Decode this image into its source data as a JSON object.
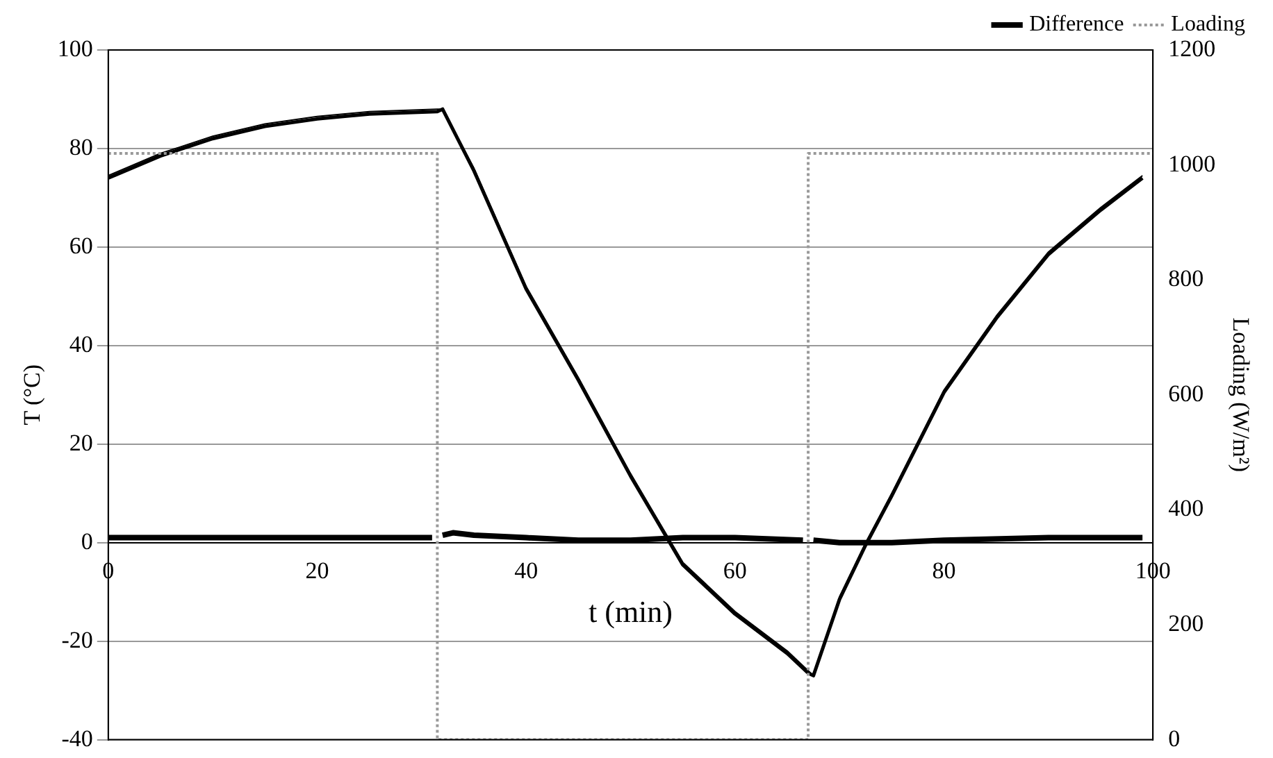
{
  "chart_data": {
    "type": "line",
    "xlabel": "t (min)",
    "ylabel": "T (°C)",
    "y2label": "Loading (W/m²)",
    "xlim": [
      0,
      100
    ],
    "xticks": [
      0,
      20,
      40,
      60,
      80,
      100
    ],
    "ylim": [
      -40,
      100
    ],
    "yticks": [
      -40,
      -20,
      0,
      20,
      40,
      60,
      80,
      100
    ],
    "y2lim": [
      0,
      1200
    ],
    "y2ticks": [
      0,
      200,
      400,
      600,
      800,
      1000,
      1200
    ],
    "grid": "y",
    "legend": "top",
    "marker": "none",
    "series": [
      {
        "color": "#000000",
        "line_style": "solid",
        "x": [
          0,
          5,
          10,
          15,
          20,
          25,
          31.5,
          32,
          35,
          40,
          45,
          50,
          52.5,
          55,
          60,
          65,
          67,
          67.5,
          70,
          72.5,
          75,
          80,
          85,
          90,
          95,
          99
        ],
        "values": [
          74.5,
          79,
          82.5,
          85,
          86.5,
          87.5,
          88,
          88,
          76,
          52,
          33.5,
          14,
          5,
          -4,
          -14,
          -22,
          -26,
          -27,
          -11,
          0,
          10,
          31,
          46,
          59,
          68,
          74.5
        ]
      },
      {
        "color": "#000000",
        "line_style": "solid",
        "x": [
          0,
          5,
          10,
          15,
          20,
          25,
          31.5,
          32,
          35,
          40,
          45,
          50,
          52.5,
          55,
          60,
          65,
          67,
          67.5,
          70,
          72.5,
          75,
          80,
          85,
          90,
          95,
          99
        ],
        "values": [
          74,
          78.5,
          82,
          84.5,
          86,
          87,
          87.5,
          88,
          75.5,
          51.5,
          33,
          13.5,
          4.5,
          -4.5,
          -14.5,
          -22.5,
          -26.5,
          -27,
          -11.5,
          -0.5,
          9.5,
          30.5,
          45.5,
          58.5,
          67.5,
          74
        ]
      },
      {
        "name": "Difference",
        "color": "#000000",
        "line_style": "solid",
        "x": [
          0,
          10,
          20,
          31,
          31.5,
          32,
          33,
          35,
          40,
          45,
          50,
          55,
          60,
          66.5,
          67,
          67.5,
          70,
          75,
          80,
          90,
          99
        ],
        "values": [
          1,
          1,
          1,
          1,
          null,
          1.5,
          2,
          1.5,
          1,
          0.5,
          0.5,
          1,
          1,
          0.5,
          null,
          0.5,
          0,
          0,
          0.5,
          1,
          1
        ]
      },
      {
        "name": "Loading",
        "color": "#999999",
        "line_style": "dotted",
        "axis": "y2",
        "x": [
          0,
          31.5,
          31.5,
          67,
          67,
          100
        ],
        "values": [
          1020,
          1020,
          0,
          0,
          1020,
          1020
        ]
      }
    ]
  }
}
